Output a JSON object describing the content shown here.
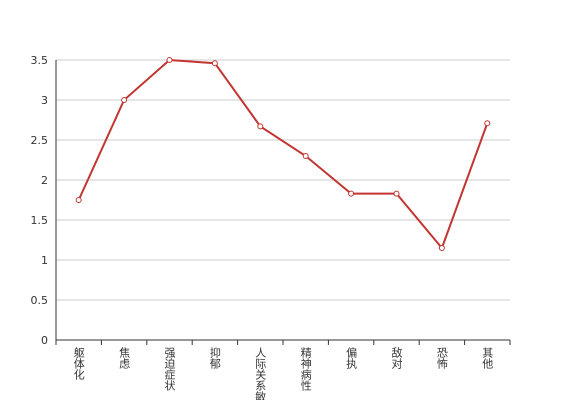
{
  "chart_data": {
    "type": "line",
    "categories": [
      "躯体化",
      "焦虑",
      "强迫症状",
      "抑郁",
      "人际关系敏感",
      "精神病性",
      "偏执",
      "敌对",
      "恐怖",
      "其他"
    ],
    "series": [
      {
        "color": "#c23531",
        "values": [
          1.75,
          3.0,
          3.5,
          3.46,
          2.67,
          2.3,
          1.83,
          1.83,
          1.15,
          2.71
        ]
      }
    ],
    "ylim": [
      0,
      3.5
    ],
    "yticks": [
      0,
      0.5,
      1,
      1.5,
      2,
      2.5,
      3,
      3.5
    ],
    "grid": true
  }
}
